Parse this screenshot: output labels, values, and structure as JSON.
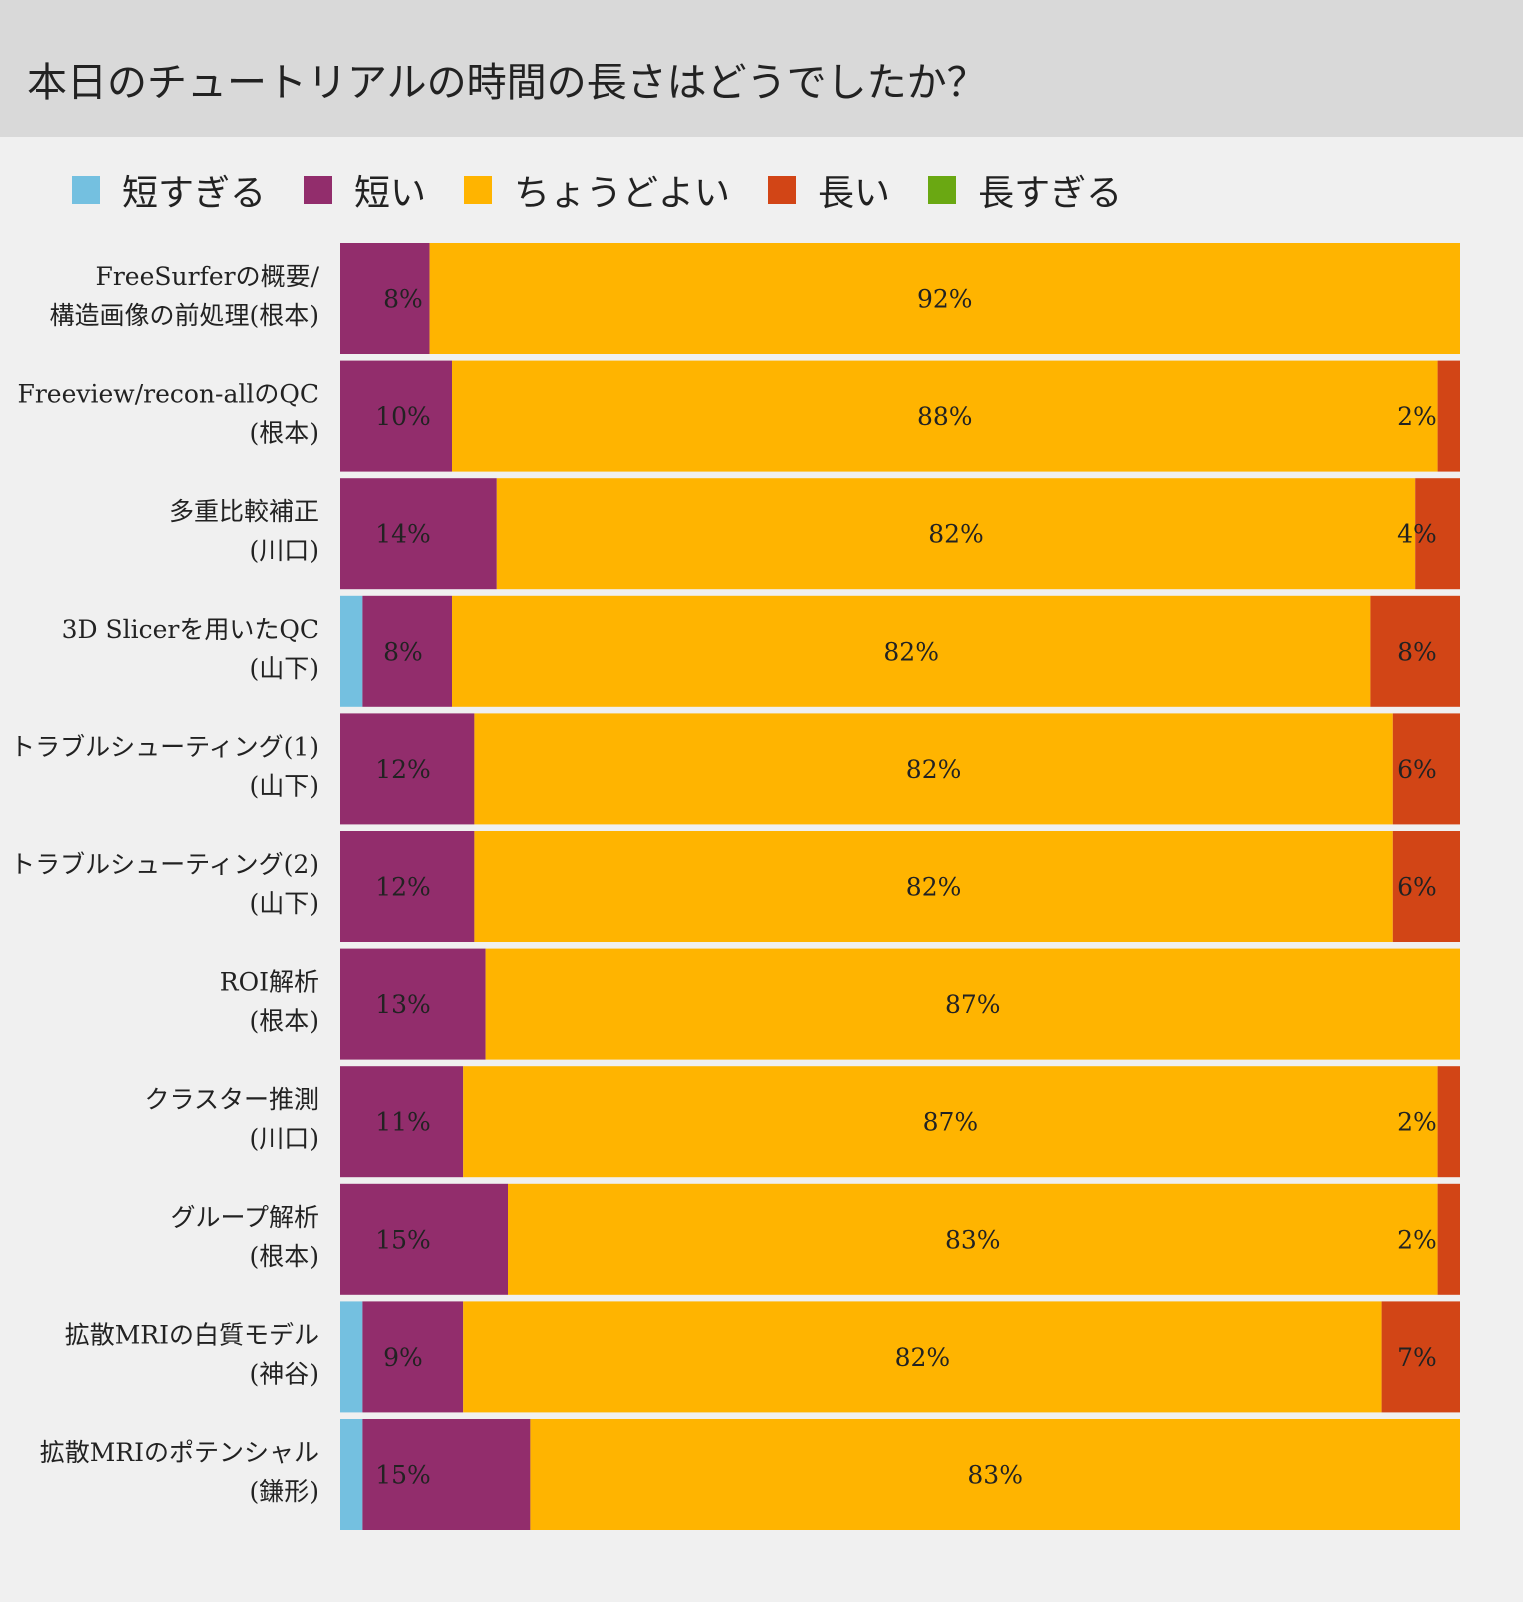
{
  "title": "本日のチュートリアルの時間の長さはどうでしたか？",
  "chart_data": {
    "type": "bar",
    "orientation": "horizontal-stacked-100",
    "title": "本日のチュートリアルの時間の長さはどうでしたか？",
    "legend_position": "top",
    "series": [
      {
        "name": "短すぎる",
        "color": "#74c0e0",
        "values": [
          0,
          0,
          0,
          2,
          0,
          0,
          0,
          0,
          0,
          2,
          2
        ],
        "show_labels": false
      },
      {
        "name": "短い",
        "color": "#922d6c",
        "values": [
          8,
          10,
          14,
          8,
          12,
          12,
          13,
          11,
          15,
          9,
          15
        ],
        "show_labels": true
      },
      {
        "name": "ちょうどよい",
        "color": "#ffb400",
        "values": [
          92,
          88,
          82,
          82,
          82,
          82,
          87,
          87,
          83,
          82,
          83
        ],
        "show_labels": true
      },
      {
        "name": "長い",
        "color": "#d24516",
        "values": [
          0,
          2,
          4,
          8,
          6,
          6,
          0,
          2,
          2,
          7,
          0
        ],
        "show_labels": true
      },
      {
        "name": "長すぎる",
        "color": "#6aa812",
        "values": [
          0,
          0,
          0,
          0,
          0,
          0,
          0,
          0,
          0,
          0,
          0
        ],
        "show_labels": false
      }
    ],
    "categories": [
      [
        "FreeSurferの概要/",
        "構造画像の前処理(根本)"
      ],
      [
        "Freeview/recon-allのQC",
        "(根本)"
      ],
      [
        "多重比較補正",
        "(川口)"
      ],
      [
        "3D Slicerを用いたQC",
        "(山下)"
      ],
      [
        "トラブルシューティング(1)",
        "(山下)"
      ],
      [
        "トラブルシューティング(2)",
        "(山下)"
      ],
      [
        "ROI解析",
        "(根本)"
      ],
      [
        "クラスター推測",
        "(川口)"
      ],
      [
        "グループ解析",
        "(根本)"
      ],
      [
        "拡散MRIの白質モデル",
        "(神谷)"
      ],
      [
        "拡散MRIのポテンシャル",
        "(鎌形)"
      ]
    ],
    "value_suffix": "%",
    "xlim": [
      0,
      100
    ]
  }
}
